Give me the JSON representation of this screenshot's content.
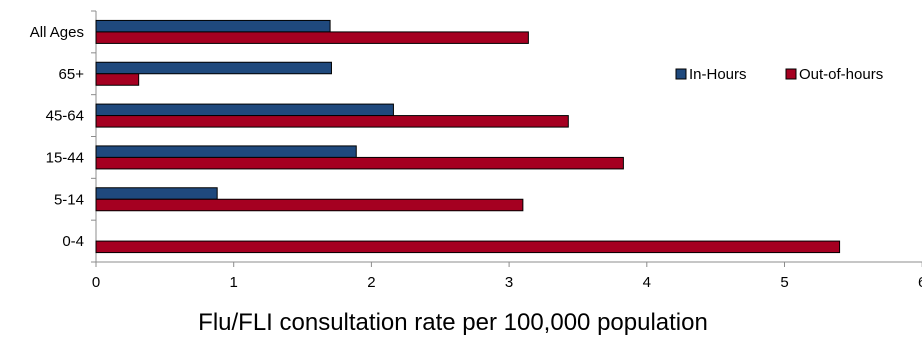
{
  "chart_data": {
    "type": "bar",
    "orientation": "horizontal",
    "categories": [
      "0-4",
      "5-14",
      "15-44",
      "45-64",
      "65+",
      "All Ages"
    ],
    "series": [
      {
        "name": "In-Hours",
        "color": "#1F497D",
        "values": [
          0,
          0.88,
          1.89,
          2.16,
          1.71,
          1.7
        ]
      },
      {
        "name": "Out-of-hours",
        "color": "#A50021",
        "values": [
          5.4,
          3.1,
          3.83,
          3.43,
          0.31,
          3.14
        ]
      }
    ],
    "title": "",
    "xlabel": "Flu/FLI consultation rate per 100,000 population",
    "ylabel": "",
    "xlim": [
      0,
      6
    ],
    "xticks": [
      "0",
      "1",
      "2",
      "3",
      "4",
      "5",
      "6"
    ],
    "grid": false,
    "legend": "right"
  }
}
